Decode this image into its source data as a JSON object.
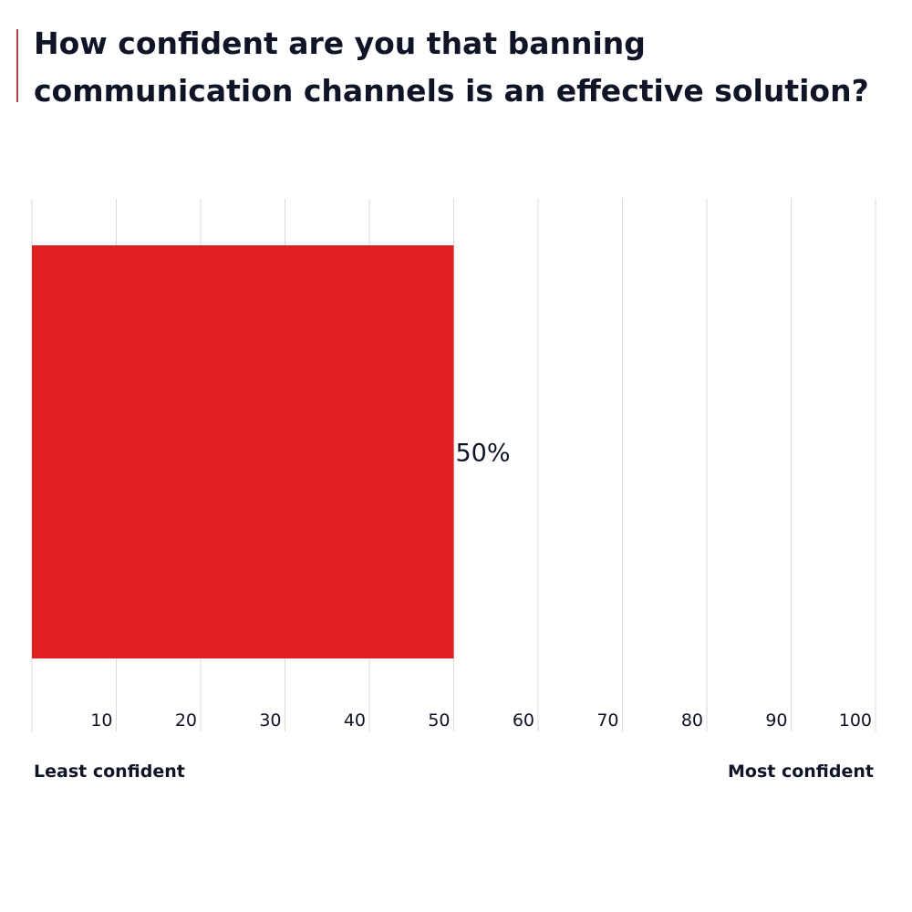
{
  "title_text": "How confident are you that banning communication channels is an effective solution?",
  "colors": {
    "bar": "#e01f21",
    "grid": "#d9d9d9",
    "text": "#0f1426",
    "accent_rule": "#b5413f"
  },
  "chart_data": {
    "type": "bar",
    "orientation": "horizontal",
    "title": "How confident are you that banning communication channels is an effective solution?",
    "values": [
      50
    ],
    "value_labels": [
      "50%"
    ],
    "xlim": [
      0,
      100
    ],
    "ticks": [
      10,
      20,
      30,
      40,
      50,
      60,
      70,
      80,
      90,
      100
    ],
    "tick_labels": [
      "10",
      "20",
      "30",
      "40",
      "50",
      "60",
      "70",
      "80",
      "90",
      "100"
    ],
    "grid": true,
    "scale_min_label": "Least confident",
    "scale_max_label": "Most confident"
  }
}
